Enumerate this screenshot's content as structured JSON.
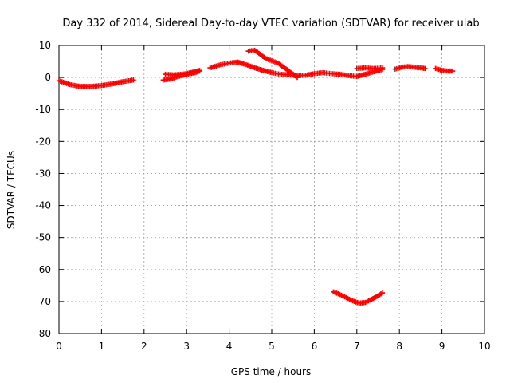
{
  "chart_data": {
    "type": "scatter",
    "title": "Day 332 of 2014, Sidereal Day-to-day VTEC variation (SDTVAR) for receiver ulab",
    "xlabel": "GPS time / hours",
    "ylabel": "SDTVAR / TECUs",
    "xlim": [
      0,
      10
    ],
    "ylim": [
      -80,
      10
    ],
    "xticks": [
      0,
      1,
      2,
      3,
      4,
      5,
      6,
      7,
      8,
      9,
      10
    ],
    "yticks": [
      10,
      0,
      -10,
      -20,
      -30,
      -40,
      -50,
      -60,
      -70,
      -80
    ],
    "grid": true,
    "legend": "none",
    "marker": "plus",
    "color": "#ff0000",
    "series": [
      {
        "x": [
          0.0,
          0.25,
          0.5,
          0.75,
          1.0,
          1.25,
          1.5,
          1.75
        ],
        "y": [
          -1.0,
          -2.2,
          -2.8,
          -2.8,
          -2.5,
          -2.0,
          -1.3,
          -0.8
        ]
      },
      {
        "x": [
          2.45,
          2.6,
          2.8,
          3.0,
          3.2,
          3.3
        ],
        "y": [
          -0.8,
          -0.5,
          0.3,
          1.0,
          1.5,
          2.0
        ]
      },
      {
        "x": [
          2.5,
          2.7,
          2.9,
          3.1,
          3.3
        ],
        "y": [
          1.0,
          0.8,
          1.0,
          1.5,
          2.2
        ]
      },
      {
        "x": [
          3.55,
          3.8,
          4.0,
          4.2,
          4.4,
          4.6,
          4.8,
          5.0,
          5.2,
          5.4,
          5.6,
          5.8,
          6.0,
          6.2,
          6.4,
          6.6,
          6.8,
          7.0
        ],
        "y": [
          3.0,
          4.0,
          4.5,
          4.8,
          4.0,
          3.0,
          2.2,
          1.5,
          1.0,
          0.8,
          0.6,
          0.7,
          1.2,
          1.5,
          1.2,
          1.0,
          0.6,
          0.3
        ]
      },
      {
        "x": [
          4.45,
          4.6,
          4.7,
          4.85,
          5.0,
          5.15,
          5.3,
          5.45,
          5.6
        ],
        "y": [
          8.2,
          8.5,
          7.5,
          6.0,
          5.2,
          4.5,
          3.0,
          1.5,
          0.0
        ]
      },
      {
        "x": [
          7.0,
          7.2,
          7.4,
          7.6
        ],
        "y": [
          2.8,
          3.0,
          2.8,
          3.0
        ]
      },
      {
        "x": [
          7.0,
          7.2,
          7.4,
          7.6
        ],
        "y": [
          0.3,
          1.0,
          1.8,
          2.5
        ]
      },
      {
        "x": [
          7.9,
          8.05,
          8.2,
          8.35,
          8.5,
          8.6
        ],
        "y": [
          2.6,
          3.2,
          3.4,
          3.2,
          3.0,
          2.8
        ]
      },
      {
        "x": [
          8.85,
          9.0,
          9.15,
          9.25
        ],
        "y": [
          2.8,
          2.2,
          2.0,
          2.0
        ]
      },
      {
        "x": [
          6.45,
          6.6,
          6.75,
          6.9,
          7.05,
          7.2,
          7.35,
          7.5,
          7.6
        ],
        "y": [
          -67.0,
          -67.8,
          -68.8,
          -69.8,
          -70.5,
          -70.3,
          -69.3,
          -68.2,
          -67.3
        ]
      }
    ]
  }
}
